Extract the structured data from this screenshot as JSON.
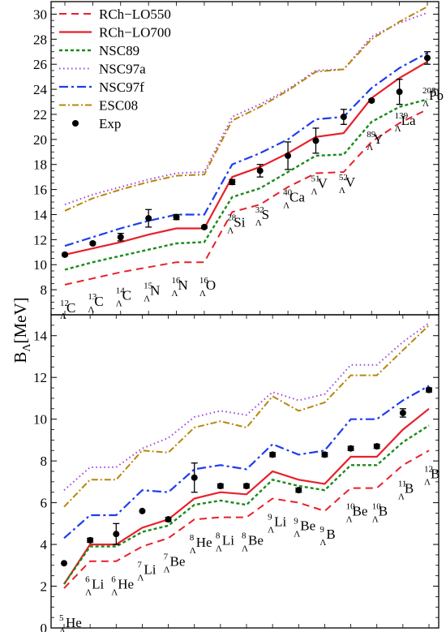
{
  "figure": {
    "ylabel": "B",
    "ylabel_sub": "Λ",
    "ylabel_unit": "[MeV]"
  },
  "legend": [
    {
      "key": "RChLO550",
      "label": "RCh−LO550",
      "color": "#e8202a",
      "style": "dash"
    },
    {
      "key": "RChLO700",
      "label": "RCh−LO700",
      "color": "#e8202a",
      "style": "solid"
    },
    {
      "key": "NSC89",
      "label": "NSC89",
      "color": "#1a8a1a",
      "style": "dotted-dash"
    },
    {
      "key": "NSC97a",
      "label": "NSC97a",
      "color": "#a040e0",
      "style": "dot"
    },
    {
      "key": "NSC97f",
      "label": "NSC97f",
      "color": "#1e3cf0",
      "style": "dashdot"
    },
    {
      "key": "ESC08",
      "label": "ESC08",
      "color": "#b8860b",
      "style": "dashdot2"
    },
    {
      "key": "Exp",
      "label": "Exp",
      "color": "#000000",
      "style": "marker"
    }
  ],
  "chart_data": [
    {
      "type": "line",
      "panel": "top",
      "ylim": [
        6,
        31
      ],
      "yticks": [
        8,
        10,
        12,
        14,
        16,
        18,
        20,
        22,
        24,
        26,
        28,
        30
      ],
      "legend_position": "top-left",
      "nuclei": [
        {
          "mass": "12",
          "el": "C"
        },
        {
          "mass": "13",
          "el": "C"
        },
        {
          "mass": "14",
          "el": "C"
        },
        {
          "mass": "15",
          "el": "N"
        },
        {
          "mass": "16",
          "el": "N"
        },
        {
          "mass": "16",
          "el": "O"
        },
        {
          "mass": "28",
          "el": "Si"
        },
        {
          "mass": "32",
          "el": "S"
        },
        {
          "mass": "40",
          "el": "Ca"
        },
        {
          "mass": "51",
          "el": "V"
        },
        {
          "mass": "52",
          "el": "V"
        },
        {
          "mass": "89",
          "el": "Y"
        },
        {
          "mass": "139",
          "el": "La"
        },
        {
          "mass": "208",
          "el": "Pb"
        }
      ],
      "series": [
        {
          "key": "RChLO550",
          "values": [
            8.4,
            8.9,
            9.4,
            9.8,
            10.2,
            10.2,
            14.2,
            14.8,
            16.2,
            17.3,
            17.4,
            19.8,
            21.3,
            22.4
          ]
        },
        {
          "key": "RChLO700",
          "values": [
            10.8,
            11.3,
            11.8,
            12.4,
            12.9,
            12.9,
            17.0,
            17.8,
            18.9,
            20.2,
            20.5,
            23.3,
            24.9,
            26.2
          ]
        },
        {
          "key": "NSC89",
          "values": [
            9.6,
            10.2,
            10.7,
            11.2,
            11.7,
            11.8,
            15.4,
            16.1,
            17.4,
            18.7,
            18.8,
            21.4,
            22.6,
            23.2
          ]
        },
        {
          "key": "NSC97a",
          "values": [
            14.8,
            15.6,
            16.2,
            16.8,
            17.3,
            17.4,
            21.8,
            22.8,
            24.0,
            25.5,
            25.6,
            28.2,
            29.3,
            30.1
          ]
        },
        {
          "key": "NSC97f",
          "values": [
            11.5,
            12.2,
            12.9,
            13.5,
            14.0,
            14.0,
            18.0,
            18.9,
            20.0,
            21.6,
            21.8,
            24.1,
            25.7,
            26.9
          ]
        },
        {
          "key": "ESC08",
          "values": [
            14.3,
            15.3,
            16.0,
            16.6,
            17.1,
            17.2,
            21.5,
            22.6,
            23.9,
            25.4,
            25.6,
            28.0,
            29.4,
            30.6
          ]
        }
      ],
      "exp": {
        "values": [
          10.8,
          11.7,
          12.2,
          13.7,
          13.8,
          13.0,
          16.6,
          17.5,
          18.7,
          19.9,
          21.8,
          23.1,
          23.8,
          26.5
        ],
        "errors": [
          0.1,
          0.1,
          0.3,
          0.7,
          0.2,
          0.1,
          0.2,
          0.5,
          1.1,
          1.0,
          0.6,
          0.1,
          1.0,
          0.5
        ]
      }
    },
    {
      "type": "line",
      "panel": "bottom",
      "ylim": [
        0,
        15
      ],
      "yticks": [
        0,
        2,
        4,
        6,
        8,
        10,
        12,
        14
      ],
      "nuclei": [
        {
          "mass": "5",
          "el": "He"
        },
        {
          "mass": "6",
          "el": "Li"
        },
        {
          "mass": "6",
          "el": "He"
        },
        {
          "mass": "7",
          "el": "Li"
        },
        {
          "mass": "7",
          "el": "Be"
        },
        {
          "mass": "8",
          "el": "He"
        },
        {
          "mass": "8",
          "el": "Li"
        },
        {
          "mass": "8",
          "el": "Be"
        },
        {
          "mass": "9",
          "el": "Li"
        },
        {
          "mass": "9",
          "el": "Be"
        },
        {
          "mass": "9",
          "el": "B"
        },
        {
          "mass": "10",
          "el": "Be"
        },
        {
          "mass": "10",
          "el": "B"
        },
        {
          "mass": "11",
          "el": "B"
        },
        {
          "mass": "12",
          "el": "B"
        }
      ],
      "series": [
        {
          "key": "RChLO550",
          "values": [
            1.9,
            3.2,
            3.2,
            3.9,
            4.3,
            5.2,
            5.3,
            5.3,
            6.2,
            6.0,
            5.6,
            6.7,
            6.7,
            7.8,
            8.5
          ]
        },
        {
          "key": "RChLO700",
          "values": [
            2.1,
            4.0,
            4.0,
            4.8,
            5.2,
            6.2,
            6.5,
            6.4,
            7.5,
            7.1,
            6.9,
            8.2,
            8.2,
            9.5,
            10.5
          ]
        },
        {
          "key": "NSC89",
          "values": [
            2.1,
            3.9,
            3.9,
            4.6,
            4.9,
            5.9,
            6.1,
            5.9,
            7.1,
            6.8,
            6.6,
            7.8,
            7.8,
            8.9,
            9.7
          ]
        },
        {
          "key": "NSC97a",
          "values": [
            6.6,
            7.7,
            7.7,
            8.6,
            9.1,
            10.1,
            10.4,
            10.2,
            11.3,
            10.9,
            11.2,
            12.6,
            12.6,
            13.7,
            14.6
          ]
        },
        {
          "key": "NSC97f",
          "values": [
            4.3,
            5.4,
            5.4,
            6.6,
            6.5,
            7.6,
            7.8,
            7.6,
            8.8,
            8.3,
            8.5,
            10.0,
            10.0,
            10.9,
            11.6
          ]
        },
        {
          "key": "ESC08",
          "values": [
            5.8,
            7.1,
            7.1,
            8.5,
            8.4,
            9.6,
            9.9,
            9.6,
            11.1,
            10.4,
            10.8,
            12.1,
            12.1,
            13.3,
            14.5
          ]
        }
      ],
      "exp": {
        "values": [
          3.1,
          4.2,
          4.5,
          5.6,
          5.2,
          7.2,
          6.8,
          6.8,
          8.3,
          6.6,
          8.3,
          8.6,
          8.7,
          10.3,
          11.4
        ],
        "errors": [
          0.05,
          0.1,
          0.5,
          0.05,
          0.1,
          0.7,
          0.1,
          0.1,
          0.1,
          0.1,
          0.1,
          0.1,
          0.1,
          0.2,
          0.1
        ]
      }
    }
  ]
}
